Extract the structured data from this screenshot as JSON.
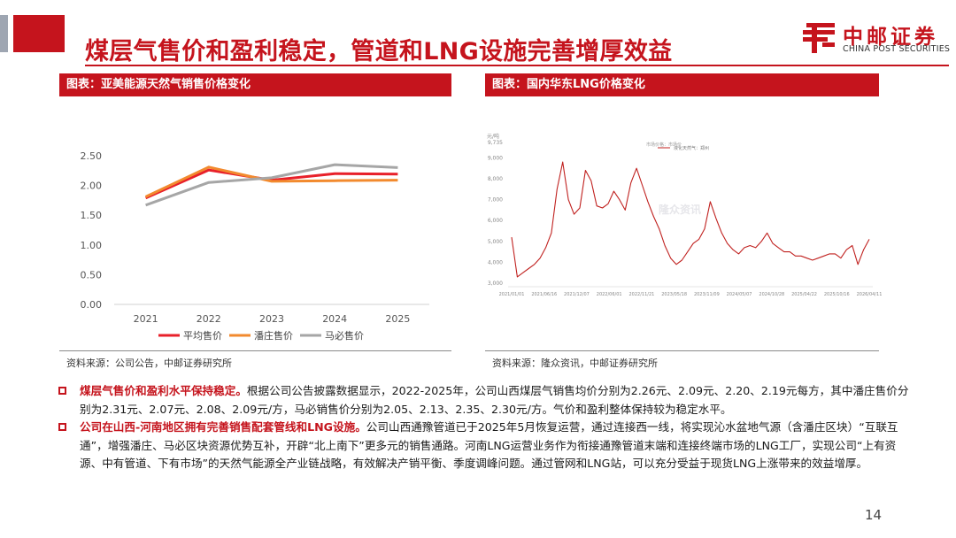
{
  "slide": {
    "title": "煤层气售价和盈利稳定，管道和LNG设施完善增厚效益",
    "page_number": "14"
  },
  "logo": {
    "cn_name": "中邮证券",
    "en_name": "CHINA POST SECURITIES"
  },
  "colors": {
    "brand_red": "#c5141d",
    "series_avg": "#e8202a",
    "series_panzhuang": "#f28a2e",
    "series_mabi": "#a6a6a6",
    "lng_line": "#c0211f"
  },
  "left_panel": {
    "header": "图表：亚美能源天然气销售价格变化",
    "source": "资料来源：公司公告，中邮证券研究所"
  },
  "right_panel": {
    "header": "图表：国内华东LNG价格变化",
    "source": "资料来源：隆众资讯，中邮证券研究所",
    "watermark": "隆众资讯"
  },
  "chart_data": [
    {
      "type": "line",
      "title": "",
      "categories": [
        "2021",
        "2022",
        "2023",
        "2024",
        "2025"
      ],
      "ylim": [
        0,
        2.5
      ],
      "yticks": [
        "0.00",
        "0.50",
        "1.00",
        "1.50",
        "2.00",
        "2.50"
      ],
      "grid": false,
      "legend_position": "bottom",
      "series": [
        {
          "name": "平均售价",
          "values": [
            1.79,
            2.26,
            2.09,
            2.2,
            2.19
          ]
        },
        {
          "name": "潘庄售价",
          "values": [
            1.81,
            2.31,
            2.07,
            2.08,
            2.09
          ]
        },
        {
          "name": "马必售价",
          "values": [
            1.67,
            2.05,
            2.13,
            2.35,
            2.3
          ]
        }
      ]
    },
    {
      "type": "line",
      "title": "",
      "ylabel": "元/吨",
      "ylim": [
        3000,
        9735
      ],
      "yticks": [
        "3,000",
        "4,000",
        "5,000",
        "6,000",
        "7,000",
        "8,000",
        "9,000",
        "9,735"
      ],
      "xticks": [
        "2021/01/01",
        "2021/06/16",
        "2021/12/07",
        "2022/06/01",
        "2022/11/21",
        "2023/05/18",
        "2023/11/09",
        "2024/05/07",
        "2024/10/28",
        "2025/04/22",
        "2025/10/16",
        "2026/04/11"
      ],
      "legend_position": "top",
      "legend": [
        "市场价格：市场价",
        "液化天然气：郑州"
      ],
      "series": [
        {
          "name": "液化天然气：郑州",
          "x": [
            "2021/01",
            "2021/02",
            "2021/03",
            "2021/04",
            "2021/05",
            "2021/06",
            "2021/07",
            "2021/08",
            "2021/09",
            "2021/10",
            "2021/11",
            "2021/12",
            "2022/01",
            "2022/02",
            "2022/03",
            "2022/04",
            "2022/05",
            "2022/06",
            "2022/07",
            "2022/08",
            "2022/09",
            "2022/10",
            "2022/11",
            "2022/12",
            "2023/01",
            "2023/02",
            "2023/03",
            "2023/04",
            "2023/05",
            "2023/06",
            "2023/07",
            "2023/08",
            "2023/09",
            "2023/10",
            "2023/11",
            "2023/12",
            "2024/01",
            "2024/02",
            "2024/03",
            "2024/04",
            "2024/05",
            "2024/06",
            "2024/07",
            "2024/08",
            "2024/09",
            "2024/10",
            "2024/11",
            "2024/12",
            "2025/01",
            "2025/02",
            "2025/03",
            "2025/04",
            "2025/05",
            "2025/06",
            "2025/07",
            "2025/08",
            "2025/09",
            "2025/10",
            "2025/11",
            "2025/12",
            "2026/01",
            "2026/02",
            "2026/03",
            "2026/04"
          ],
          "values": [
            5200,
            3300,
            3500,
            3700,
            3900,
            4200,
            4700,
            5400,
            7500,
            8800,
            7000,
            6300,
            6600,
            8400,
            7900,
            6700,
            6600,
            6800,
            7400,
            7000,
            6500,
            7800,
            8500,
            7700,
            6900,
            6200,
            5600,
            4800,
            4200,
            3900,
            4100,
            4500,
            4900,
            5100,
            5600,
            6900,
            6100,
            5400,
            4900,
            4600,
            4400,
            4700,
            4800,
            4700,
            5000,
            5400,
            4900,
            4700,
            4500,
            4500,
            4300,
            4300,
            4200,
            4100,
            4200,
            4300,
            4400,
            4400,
            4200,
            4600,
            4800,
            3900,
            4600,
            5100
          ]
        }
      ]
    }
  ],
  "bullets": [
    {
      "highlight": "煤层气售价和盈利水平保持稳定。",
      "text": "根据公司公告披露数据显示，2022-2025年，公司山西煤层气销售均价分别为2.26元、2.09元、2.20、2.19元每方，其中潘庄售价分别为2.31元、2.07元、2.08、2.09元/方，马必销售价分别为2.05、2.13、2.35、2.30元/方。气价和盈利整体保持较为稳定水平。"
    },
    {
      "highlight": "公司在山西-河南地区拥有完善销售配套管线和LNG设施。",
      "text": "公司山西通豫管道已于2025年5月恢复运营，通过连接西一线，将实现沁水盆地气源（含潘庄区块）“互联互通”，增强潘庄、马必区块资源优势互补，开辟“北上南下”更多元的销售通路。河南LNG运营业务作为衔接通豫管道末端和连接终端市场的LNG工厂，实现公司“上有资源、中有管道、下有市场”的天然气能源全产业链战略，有效解决产销平衡、季度调峰问题。通过管网和LNG站，可以充分受益于现货LNG上涨带来的效益增厚。"
    }
  ]
}
